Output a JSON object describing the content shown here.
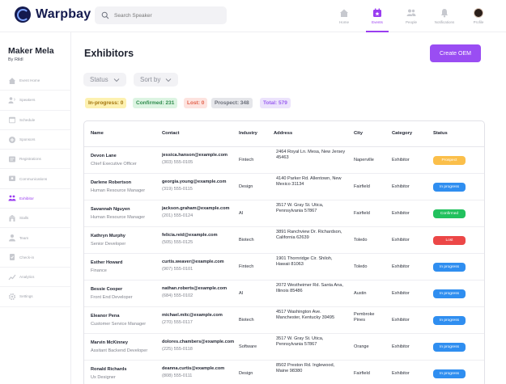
{
  "app": {
    "name": "Warpbay"
  },
  "search": {
    "placeholder": "Search Speaker"
  },
  "nav": [
    {
      "label": "Home",
      "icon": "home-icon"
    },
    {
      "label": "Events",
      "icon": "events-icon"
    },
    {
      "label": "People",
      "icon": "people-icon"
    },
    {
      "label": "Notifications",
      "icon": "bell-icon"
    },
    {
      "label": "Profile",
      "icon": "avatar"
    }
  ],
  "event": {
    "title": "Maker Mela",
    "subtitle": "By Rildl"
  },
  "sidebar": {
    "items": [
      {
        "label": "Event Home",
        "icon": "home-icon"
      },
      {
        "label": "Speakers",
        "icon": "speaker-icon"
      },
      {
        "label": "Schedule",
        "icon": "calendar-icon"
      },
      {
        "label": "Sponsors",
        "icon": "sponsor-icon"
      },
      {
        "label": "Registrations",
        "icon": "registrations-icon"
      },
      {
        "label": "Communications",
        "icon": "communications-icon"
      },
      {
        "label": "Exhibitor",
        "icon": "exhibitor-icon"
      },
      {
        "label": "Stalls",
        "icon": "stall-icon"
      },
      {
        "label": "Team",
        "icon": "team-icon"
      },
      {
        "label": "Check-in",
        "icon": "checkin-icon"
      },
      {
        "label": "Analytics",
        "icon": "analytics-icon"
      },
      {
        "label": "Settings",
        "icon": "gear-icon"
      }
    ],
    "active_index": 6
  },
  "main": {
    "title": "Exhibitors",
    "create_button": "Create OEM",
    "filters": [
      {
        "label": "Status"
      },
      {
        "label": "Sort by"
      }
    ],
    "summary": [
      {
        "label": "In-progress: 0",
        "bg": "#fdf1b0",
        "fg": "#a2720a"
      },
      {
        "label": "Confirmed: 231",
        "bg": "#dcf4e2",
        "fg": "#2f8c4d"
      },
      {
        "label": "Lost: 0",
        "bg": "#fde3df",
        "fg": "#e2604a"
      },
      {
        "label": "Prospect: 348",
        "bg": "#e5e6ea",
        "fg": "#6a6e79"
      },
      {
        "label": "Total: 579",
        "bg": "#ece3fc",
        "fg": "#9a5ef0"
      }
    ]
  },
  "table": {
    "columns": [
      "Name",
      "Contact",
      "Industry",
      "Address",
      "City",
      "Category",
      "Status"
    ],
    "rows": [
      {
        "name": "Devon Lane",
        "role": "Chief Executive Officer",
        "email": "jessica.hanson@example.com",
        "phone": "(303) 555-0105",
        "industry": "Fintech",
        "address": "2464 Royal Ln. Mesa, New Jersey 45463",
        "city": "Naperville",
        "category": "Exhibitor",
        "status": "Prospect",
        "status_color": "#fbbf4a"
      },
      {
        "name": "Darlene Robertson",
        "role": "Human Resource Manager",
        "email": "georgia.young@example.com",
        "phone": "(319) 555-0115",
        "industry": "Design",
        "address": "4140 Parker Rd. Allentown, New Mexico 31134",
        "city": "Fairfield",
        "category": "Exhibitor",
        "status": "In progress",
        "status_color": "#2f8ef0"
      },
      {
        "name": "Savannah Nguyen",
        "role": "Human Resource Manager",
        "email": "jackson.graham@example.com",
        "phone": "(201) 555-0124",
        "industry": "AI",
        "address": "3517 W. Gray St. Utica, Pennsylvania 57867",
        "city": "Fairfield",
        "category": "Exhibitor",
        "status": "Confirmed",
        "status_color": "#22c15e"
      },
      {
        "name": "Kathryn Murphy",
        "role": "Senior Developer",
        "email": "felicia.reid@example.com",
        "phone": "(505) 555-0125",
        "industry": "Biotech",
        "address": "3891 Ranchview Dr. Richardson, California 62639",
        "city": "Toledo",
        "category": "Exhibitor",
        "status": "Lost",
        "status_color": "#ec4747"
      },
      {
        "name": "Esther Howard",
        "role": "Finance",
        "email": "curtis.weaver@example.com",
        "phone": "(907) 555-0101",
        "industry": "Fintech",
        "address": "1901 Thornridge Cir. Shiloh, Hawaii 81063",
        "city": "Toledo",
        "category": "Exhibitor",
        "status": "In progress",
        "status_color": "#2f8ef0"
      },
      {
        "name": "Bessie Cooper",
        "role": "Front End Developer",
        "email": "nathan.roberts@example.com",
        "phone": "(684) 555-0102",
        "industry": "AI",
        "address": "2072 Westheimer Rd. Santa Ana, Illinois 85486",
        "city": "Austin",
        "category": "Exhibitor",
        "status": "In progress",
        "status_color": "#2f8ef0"
      },
      {
        "name": "Eleanor Pena",
        "role": "Customer Service Manager",
        "email": "michael.mitc@example.com",
        "phone": "(270) 555-0117",
        "industry": "Biotech",
        "address": "4517 Washington Ave. Manchester, Kentucky 39495",
        "city": "Pembroke Pines",
        "category": "Exhibitor",
        "status": "In progress",
        "status_color": "#2f8ef0"
      },
      {
        "name": "Marvin McKinney",
        "role": "Assitant Backend Developer",
        "email": "dolores.chambers@example.com",
        "phone": "(225) 555-0118",
        "industry": "Software",
        "address": "3517 W. Gray St. Utica, Pennsylvania 57867",
        "city": "Orange",
        "category": "Exhibitor",
        "status": "In progress",
        "status_color": "#2f8ef0"
      },
      {
        "name": "Ronald Richards",
        "role": "Ux Designer",
        "email": "deanna.curtis@example.com",
        "phone": "(808) 555-0111",
        "industry": "Design",
        "address": "8502 Preston Rd. Inglewood, Maine 98380",
        "city": "Fairfield",
        "category": "Exhibitor",
        "status": "In progress",
        "status_color": "#2f8ef0"
      }
    ]
  }
}
